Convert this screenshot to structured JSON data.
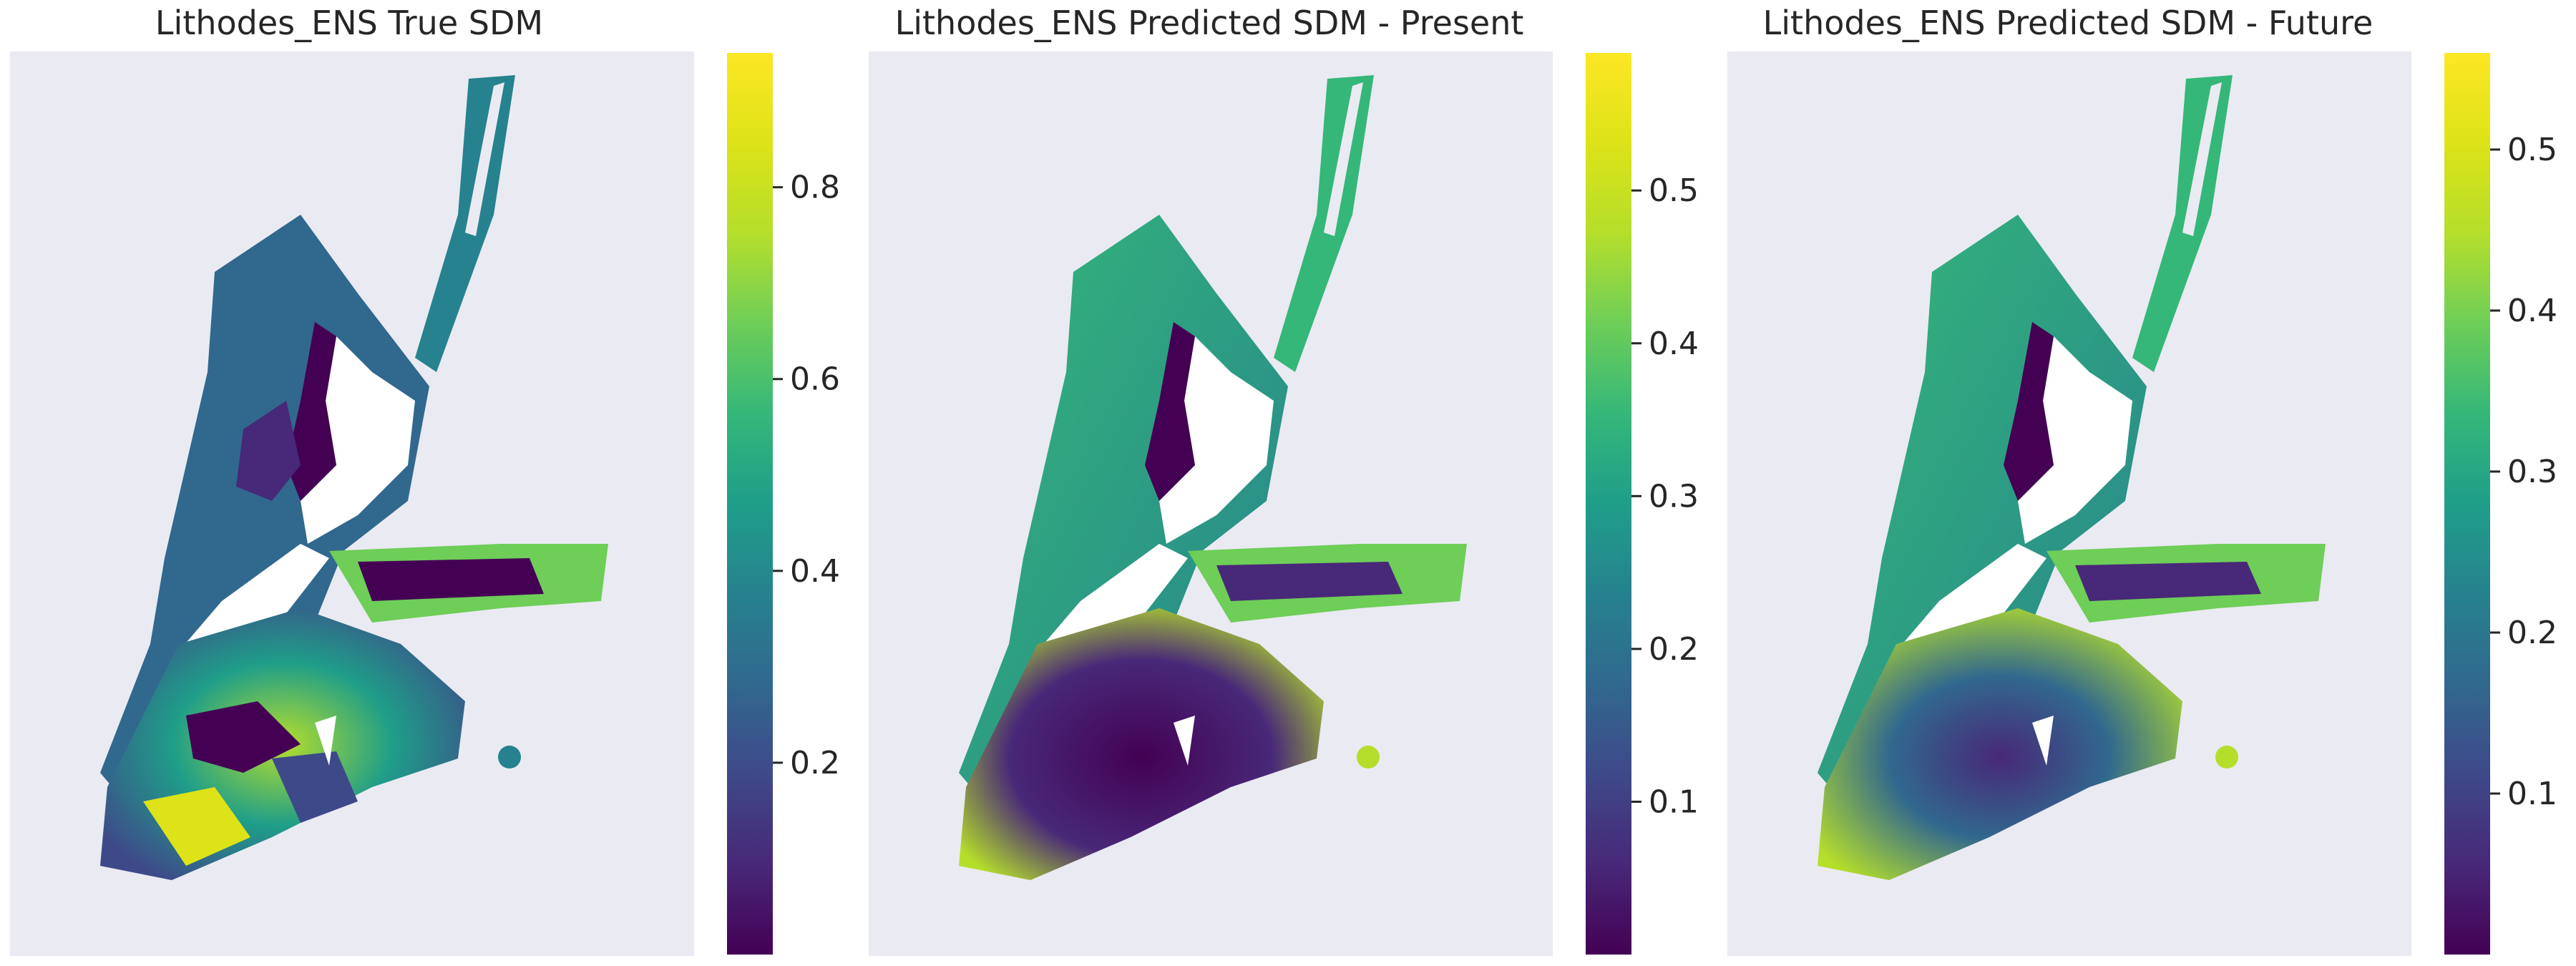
{
  "chart_data": [
    {
      "type": "heatmap",
      "title": "Lithodes_ENS True SDM",
      "colormap": "viridis",
      "colorbar": {
        "min": 0.0,
        "max": 0.94,
        "ticks": [
          0.2,
          0.4,
          0.6,
          0.8
        ],
        "tick_labels": [
          "0.2",
          "0.4",
          "0.6",
          "0.8"
        ]
      },
      "background": "#eaeaf2"
    },
    {
      "type": "heatmap",
      "title": "Lithodes_ENS Predicted SDM - Present",
      "colormap": "viridis",
      "colorbar": {
        "min": 0.0,
        "max": 0.59,
        "ticks": [
          0.1,
          0.2,
          0.3,
          0.4,
          0.5
        ],
        "tick_labels": [
          "0.1",
          "0.2",
          "0.3",
          "0.4",
          "0.5"
        ]
      },
      "background": "#eaeaf2"
    },
    {
      "type": "heatmap",
      "title": "Lithodes_ENS Predicted SDM - Future",
      "colormap": "viridis",
      "colorbar": {
        "min": 0.0,
        "max": 0.56,
        "ticks": [
          0.1,
          0.2,
          0.3,
          0.4,
          0.5
        ],
        "tick_labels": [
          "0.1",
          "0.2",
          "0.3",
          "0.4",
          "0.5"
        ]
      },
      "background": "#eaeaf2"
    }
  ]
}
